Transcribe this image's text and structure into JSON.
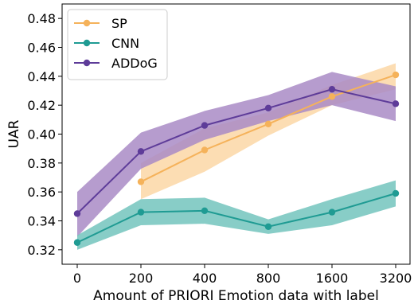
{
  "chart_data": {
    "type": "line",
    "xlabel": "Amount of PRIORI Emotion data with label",
    "ylabel": "UAR",
    "categories": [
      "0",
      "200",
      "400",
      "800",
      "1600",
      "3200"
    ],
    "ylim": [
      0.31,
      0.49
    ],
    "yticks": [
      "0.32",
      "0.34",
      "0.36",
      "0.38",
      "0.40",
      "0.42",
      "0.44",
      "0.46",
      "0.48"
    ],
    "legend_position": "top-left",
    "grid": false,
    "series": [
      {
        "name": "SP",
        "color": "#f5b25a",
        "band_color": "#fbd7a6",
        "values": [
          null,
          0.367,
          0.389,
          0.407,
          0.426,
          0.441
        ],
        "lower": [
          null,
          0.355,
          0.374,
          0.399,
          0.42,
          0.431
        ],
        "upper": [
          null,
          0.38,
          0.404,
          0.415,
          0.434,
          0.449
        ]
      },
      {
        "name": "CNN",
        "color": "#1f9b93",
        "band_color": "#73c4bd",
        "values": [
          0.325,
          0.346,
          0.347,
          0.336,
          0.346,
          0.359
        ],
        "lower": [
          0.32,
          0.337,
          0.338,
          0.331,
          0.337,
          0.35
        ],
        "upper": [
          0.33,
          0.355,
          0.356,
          0.341,
          0.355,
          0.368
        ]
      },
      {
        "name": "ADDoG",
        "color": "#5e3c99",
        "band_color": "#a98bc6",
        "values": [
          0.345,
          0.388,
          0.406,
          0.418,
          0.431,
          0.421
        ],
        "lower": [
          0.329,
          0.376,
          0.396,
          0.409,
          0.42,
          0.409
        ],
        "upper": [
          0.36,
          0.401,
          0.416,
          0.427,
          0.443,
          0.433
        ]
      }
    ]
  }
}
